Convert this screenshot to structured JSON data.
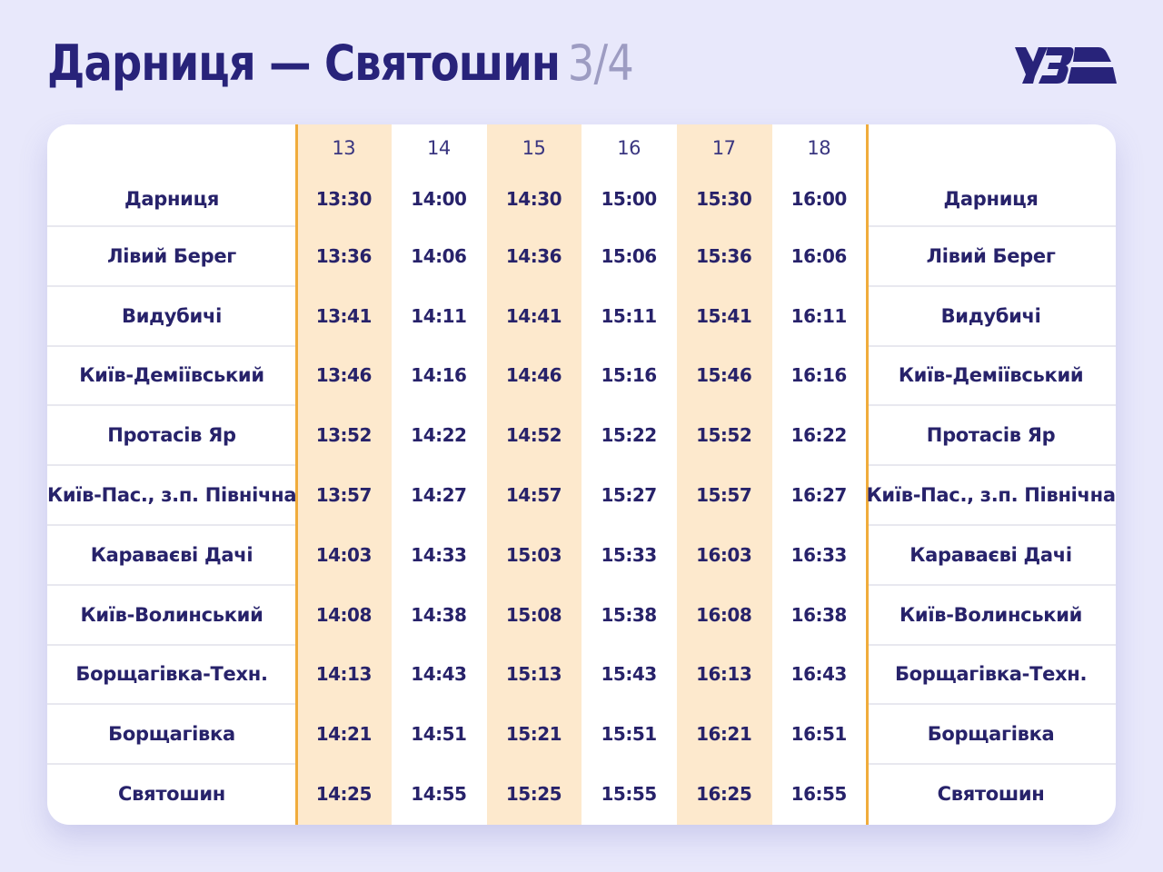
{
  "header": {
    "title": "Дарниця — Святошин",
    "page_indicator": "3/4",
    "logo_text": "УЗ"
  },
  "colors": {
    "brand": "#28237a",
    "highlight_column": "#fde9cd",
    "divider": "#f0ac3c",
    "background": "#e8e8fb"
  },
  "timetable": {
    "train_numbers": [
      "13",
      "14",
      "15",
      "16",
      "17",
      "18"
    ],
    "rows": [
      {
        "station": "Дарниця",
        "times": [
          "13:30",
          "14:00",
          "14:30",
          "15:00",
          "15:30",
          "16:00"
        ]
      },
      {
        "station": "Лівий Берег",
        "times": [
          "13:36",
          "14:06",
          "14:36",
          "15:06",
          "15:36",
          "16:06"
        ]
      },
      {
        "station": "Видубичі",
        "times": [
          "13:41",
          "14:11",
          "14:41",
          "15:11",
          "15:41",
          "16:11"
        ]
      },
      {
        "station": "Київ-Деміївський",
        "times": [
          "13:46",
          "14:16",
          "14:46",
          "15:16",
          "15:46",
          "16:16"
        ]
      },
      {
        "station": "Протасів Яр",
        "times": [
          "13:52",
          "14:22",
          "14:52",
          "15:22",
          "15:52",
          "16:22"
        ]
      },
      {
        "station": "Київ-Пас., з.п. Північна",
        "times": [
          "13:57",
          "14:27",
          "14:57",
          "15:27",
          "15:57",
          "16:27"
        ]
      },
      {
        "station": "Караваєві Дачі",
        "times": [
          "14:03",
          "14:33",
          "15:03",
          "15:33",
          "16:03",
          "16:33"
        ]
      },
      {
        "station": "Київ-Волинський",
        "times": [
          "14:08",
          "14:38",
          "15:08",
          "15:38",
          "16:08",
          "16:38"
        ]
      },
      {
        "station": "Борщагівка-Техн.",
        "times": [
          "14:13",
          "14:43",
          "15:13",
          "15:43",
          "16:13",
          "16:43"
        ]
      },
      {
        "station": "Борщагівка",
        "times": [
          "14:21",
          "14:51",
          "15:21",
          "15:51",
          "16:21",
          "16:51"
        ]
      },
      {
        "station": "Святошин",
        "times": [
          "14:25",
          "14:55",
          "15:25",
          "15:55",
          "16:25",
          "16:55"
        ]
      }
    ]
  }
}
